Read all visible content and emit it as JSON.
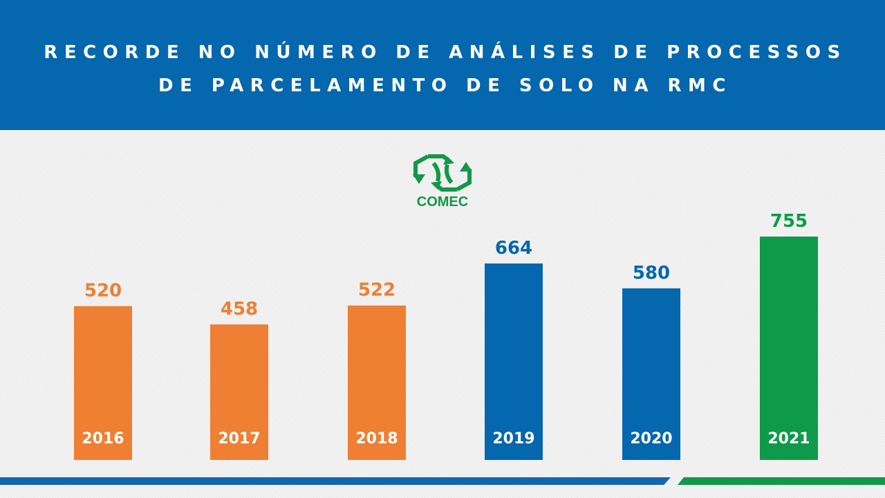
{
  "header": {
    "title_line1": "RECORDE NO NÚMERO DE ANÁLISES DE PROCESSOS",
    "title_line2": "DE PARCELAMENTO DE SOLO NA RMC"
  },
  "logo": {
    "text": "COMEC",
    "color": "#129848",
    "icon": "comec-arrows-logo-icon"
  },
  "colors": {
    "header_bg": "#0567ae",
    "orange": "#ee7f33",
    "blue": "#0567ae",
    "green": "#0f9a4a"
  },
  "chart_data": {
    "type": "bar",
    "title": "RECORDE NO NÚMERO DE ANÁLISES DE PROCESSOS DE PARCELAMENTO DE SOLO NA RMC",
    "categories": [
      "2016",
      "2017",
      "2018",
      "2019",
      "2020",
      "2021"
    ],
    "values": [
      520,
      458,
      522,
      664,
      580,
      755
    ],
    "bar_colors": [
      "#ee7f33",
      "#ee7f33",
      "#ee7f33",
      "#0567ae",
      "#0567ae",
      "#0f9a4a"
    ],
    "data_labels": [
      "520",
      "458",
      "522",
      "664",
      "580",
      "755"
    ],
    "xlabel": "",
    "ylabel": "",
    "ylim": [
      0,
      755
    ],
    "grid": false,
    "legend": "none",
    "category_label_position": "inside-bar-bottom"
  }
}
